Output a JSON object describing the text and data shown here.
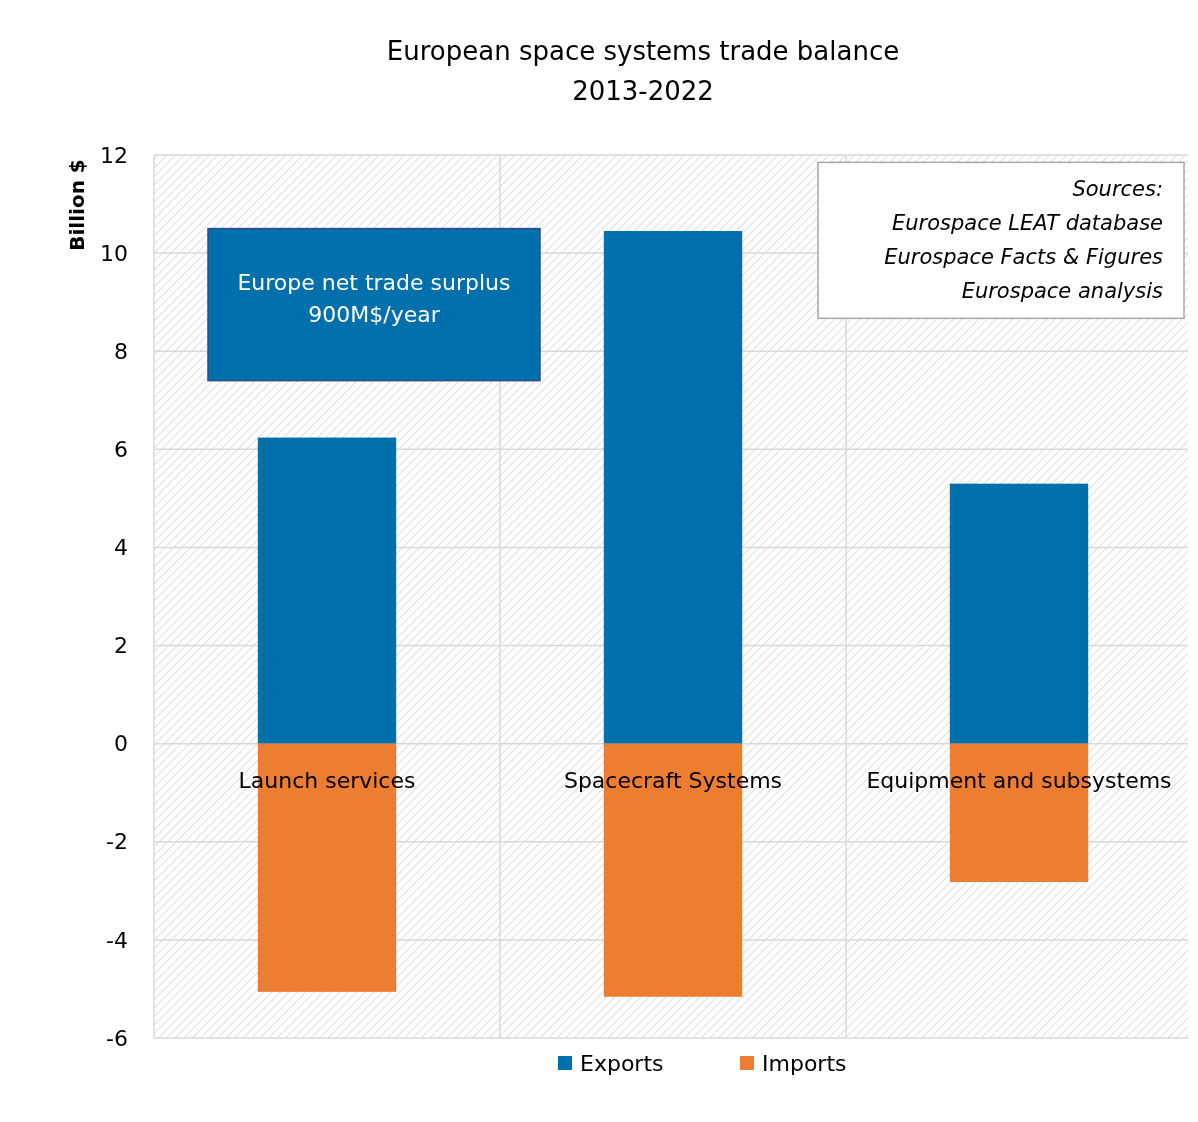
{
  "chart_data": {
    "type": "bar",
    "title": "European space systems trade balance\n2013-2022",
    "ylabel": "Billion $",
    "categories": [
      "Launch services",
      "Spacecraft Systems",
      "Equipment and subsystems"
    ],
    "stacked": true,
    "series": [
      {
        "name": "Exports",
        "color": "#0070ad",
        "values": [
          6.24,
          10.45,
          5.3
        ]
      },
      {
        "name": "Imports",
        "color": "#ed7d31",
        "values": [
          -5.06,
          -5.16,
          -2.82
        ]
      }
    ],
    "ylim": [
      -6,
      12
    ],
    "yticks": [
      -6,
      -4,
      -2,
      0,
      2,
      4,
      6,
      8,
      10,
      12
    ],
    "grid": true,
    "legend": "bottom",
    "annotations": [
      "Europe net trade surplus\n900M$/year",
      "Sources:\nEurospace LEAT database\nEurospace Facts & Figures\nEurospace analysis"
    ]
  }
}
